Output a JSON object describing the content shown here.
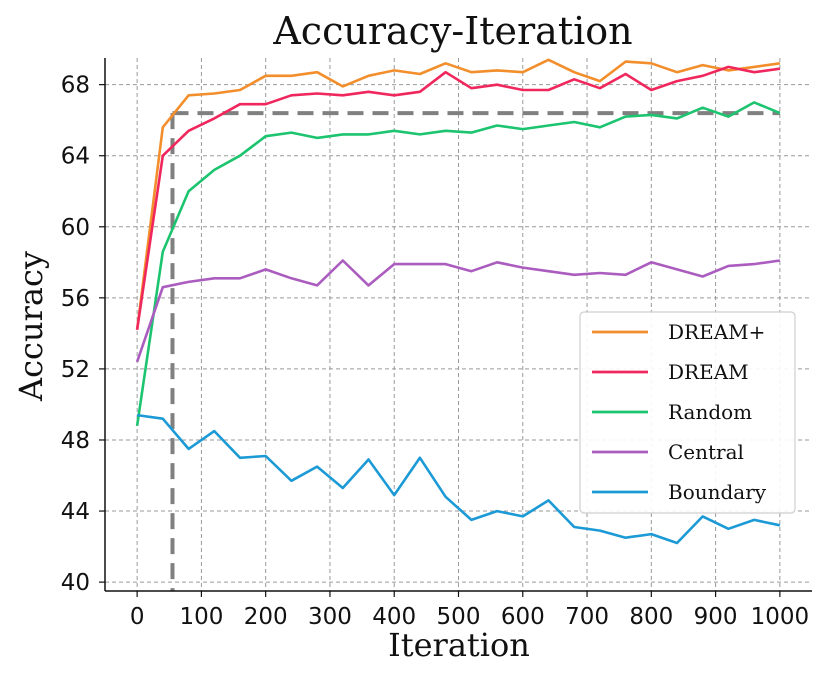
{
  "chart_data": {
    "type": "line",
    "title": "Accuracy-Iteration",
    "xlabel": "Iteration",
    "ylabel": "Accuracy",
    "xlim": [
      -50,
      1050
    ],
    "ylim": [
      39.5,
      69.5
    ],
    "xticks": [
      0,
      100,
      200,
      300,
      400,
      500,
      600,
      700,
      800,
      900,
      1000
    ],
    "yticks": [
      40,
      44,
      48,
      52,
      56,
      60,
      64,
      68
    ],
    "grid": true,
    "legend_position": "center-right",
    "x": [
      0,
      40,
      80,
      120,
      160,
      200,
      240,
      280,
      320,
      360,
      400,
      440,
      480,
      520,
      560,
      600,
      640,
      680,
      720,
      760,
      800,
      840,
      880,
      920,
      960,
      1000
    ],
    "series": [
      {
        "name": "DREAM+",
        "color": "#f28e2b",
        "values": [
          54.2,
          65.6,
          67.4,
          67.5,
          67.7,
          68.5,
          68.5,
          68.7,
          67.9,
          68.5,
          68.8,
          68.6,
          69.2,
          68.7,
          68.8,
          68.7,
          69.4,
          68.7,
          68.2,
          69.3,
          69.2,
          68.7,
          69.1,
          68.8,
          69.0,
          69.2
        ]
      },
      {
        "name": "DREAM",
        "color": "#f0275c",
        "values": [
          54.2,
          64.0,
          65.4,
          66.1,
          66.9,
          66.9,
          67.4,
          67.5,
          67.4,
          67.6,
          67.4,
          67.6,
          68.7,
          67.8,
          68.0,
          67.7,
          67.7,
          68.3,
          67.8,
          68.6,
          67.7,
          68.2,
          68.5,
          69.0,
          68.7,
          68.9
        ]
      },
      {
        "name": "Random",
        "color": "#1dc46f",
        "values": [
          48.8,
          58.6,
          62.0,
          63.2,
          64.0,
          65.1,
          65.3,
          65.0,
          65.2,
          65.2,
          65.4,
          65.2,
          65.4,
          65.3,
          65.7,
          65.5,
          65.7,
          65.9,
          65.6,
          66.2,
          66.3,
          66.1,
          66.7,
          66.2,
          67.0,
          66.4
        ]
      },
      {
        "name": "Central",
        "color": "#ab5cbf",
        "values": [
          52.4,
          56.6,
          56.9,
          57.1,
          57.1,
          57.6,
          57.1,
          56.7,
          58.1,
          56.7,
          57.9,
          57.9,
          57.9,
          57.5,
          58.0,
          57.7,
          57.5,
          57.3,
          57.4,
          57.3,
          58.0,
          57.6,
          57.2,
          57.8,
          57.9,
          58.1
        ]
      },
      {
        "name": "Boundary",
        "color": "#1c9ad6",
        "values": [
          49.4,
          49.2,
          47.5,
          48.5,
          47.0,
          47.1,
          45.7,
          46.5,
          45.3,
          46.9,
          44.9,
          47.0,
          44.8,
          43.5,
          44.0,
          43.7,
          44.6,
          43.1,
          42.9,
          42.5,
          42.7,
          42.2,
          43.7,
          43.0,
          43.5,
          43.2
        ]
      }
    ],
    "reference_lines": {
      "vertical_x": 55,
      "horizontal_y": 66.4,
      "style": "dashed",
      "color": "#808080"
    }
  }
}
